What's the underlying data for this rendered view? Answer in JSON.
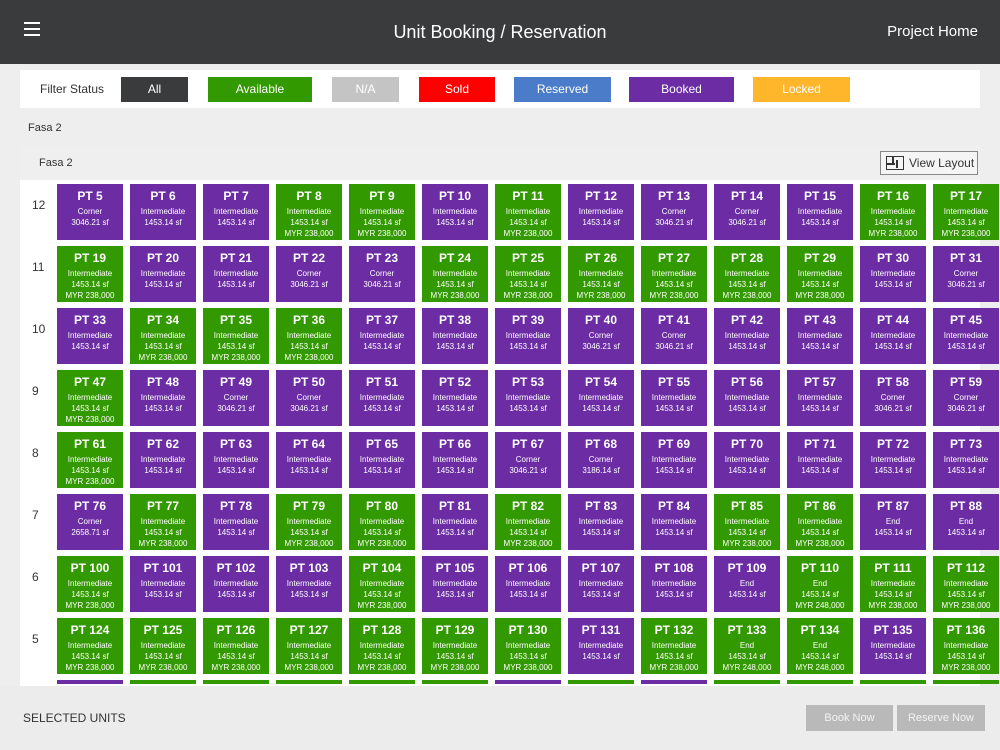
{
  "header": {
    "title": "Unit Booking / Reservation",
    "project_home": "Project Home"
  },
  "filter": {
    "label": "Filter Status",
    "buttons": [
      {
        "label": "All",
        "color": "#3a3b3d"
      },
      {
        "label": "Available",
        "color": "#339900"
      },
      {
        "label": "N/A",
        "color": "#c4c4c4"
      },
      {
        "label": "Sold",
        "color": "#ff0000"
      },
      {
        "label": "Reserved",
        "color": "#4a7cc9"
      },
      {
        "label": "Booked",
        "color": "#6b2ca4"
      },
      {
        "label": "Locked",
        "color": "#ffb62b"
      }
    ]
  },
  "section": {
    "label": "Fasa 2"
  },
  "panel": {
    "title": "Fasa 2",
    "view_layout": "View Layout"
  },
  "status_colors": {
    "available": "#339900",
    "booked": "#6b2ca4"
  },
  "floors": [
    {
      "level": "12",
      "units": [
        {
          "name": "PT 5",
          "type": "Corner",
          "size": "3046.21 sf",
          "price": "",
          "status": "booked"
        },
        {
          "name": "PT 6",
          "type": "Intermediate",
          "size": "1453.14 sf",
          "price": "",
          "status": "booked"
        },
        {
          "name": "PT 7",
          "type": "Intermediate",
          "size": "1453.14 sf",
          "price": "",
          "status": "booked"
        },
        {
          "name": "PT 8",
          "type": "Intermediate",
          "size": "1453.14 sf",
          "price": "MYR 238,000",
          "status": "available"
        },
        {
          "name": "PT 9",
          "type": "Intermediate",
          "size": "1453.14 sf",
          "price": "MYR 238,000",
          "status": "available"
        },
        {
          "name": "PT 10",
          "type": "Intermediate",
          "size": "1453.14 sf",
          "price": "",
          "status": "booked"
        },
        {
          "name": "PT 11",
          "type": "Intermediate",
          "size": "1453.14 sf",
          "price": "MYR 238,000",
          "status": "available"
        },
        {
          "name": "PT 12",
          "type": "Intermediate",
          "size": "1453.14 sf",
          "price": "",
          "status": "booked"
        },
        {
          "name": "PT 13",
          "type": "Corner",
          "size": "3046.21 sf",
          "price": "",
          "status": "booked"
        },
        {
          "name": "PT 14",
          "type": "Corner",
          "size": "3046.21 sf",
          "price": "",
          "status": "booked"
        },
        {
          "name": "PT 15",
          "type": "Intermediate",
          "size": "1453.14 sf",
          "price": "",
          "status": "booked"
        },
        {
          "name": "PT 16",
          "type": "Intermediate",
          "size": "1453.14 sf",
          "price": "MYR 238,000",
          "status": "available"
        },
        {
          "name": "PT 17",
          "type": "Intermediate",
          "size": "1453.14 sf",
          "price": "MYR 238,000",
          "status": "available"
        }
      ]
    },
    {
      "level": "11",
      "units": [
        {
          "name": "PT 19",
          "type": "Intermediate",
          "size": "1453.14 sf",
          "price": "MYR 238,000",
          "status": "available"
        },
        {
          "name": "PT 20",
          "type": "Intermediate",
          "size": "1453.14 sf",
          "price": "",
          "status": "booked"
        },
        {
          "name": "PT 21",
          "type": "Intermediate",
          "size": "1453.14 sf",
          "price": "",
          "status": "booked"
        },
        {
          "name": "PT 22",
          "type": "Corner",
          "size": "3046.21 sf",
          "price": "",
          "status": "booked"
        },
        {
          "name": "PT 23",
          "type": "Corner",
          "size": "3046.21 sf",
          "price": "",
          "status": "booked"
        },
        {
          "name": "PT 24",
          "type": "Intermediate",
          "size": "1453.14 sf",
          "price": "MYR 238,000",
          "status": "available"
        },
        {
          "name": "PT 25",
          "type": "Intermediate",
          "size": "1453.14 sf",
          "price": "MYR 238,000",
          "status": "available"
        },
        {
          "name": "PT 26",
          "type": "Intermediate",
          "size": "1453.14 sf",
          "price": "MYR 238,000",
          "status": "available"
        },
        {
          "name": "PT 27",
          "type": "Intermediate",
          "size": "1453.14 sf",
          "price": "MYR 238,000",
          "status": "available"
        },
        {
          "name": "PT 28",
          "type": "Intermediate",
          "size": "1453.14 sf",
          "price": "MYR 238,000",
          "status": "available"
        },
        {
          "name": "PT 29",
          "type": "Intermediate",
          "size": "1453.14 sf",
          "price": "MYR 238,000",
          "status": "available"
        },
        {
          "name": "PT 30",
          "type": "Intermediate",
          "size": "1453.14 sf",
          "price": "",
          "status": "booked"
        },
        {
          "name": "PT 31",
          "type": "Corner",
          "size": "3046.21 sf",
          "price": "",
          "status": "booked"
        }
      ]
    },
    {
      "level": "10",
      "units": [
        {
          "name": "PT 33",
          "type": "Intermediate",
          "size": "1453.14 sf",
          "price": "",
          "status": "booked"
        },
        {
          "name": "PT 34",
          "type": "Intermediate",
          "size": "1453.14 sf",
          "price": "MYR 238,000",
          "status": "available"
        },
        {
          "name": "PT 35",
          "type": "Intermediate",
          "size": "1453.14 sf",
          "price": "MYR 238,000",
          "status": "available"
        },
        {
          "name": "PT 36",
          "type": "Intermediate",
          "size": "1453.14 sf",
          "price": "MYR 238,000",
          "status": "available"
        },
        {
          "name": "PT 37",
          "type": "Intermediate",
          "size": "1453.14 sf",
          "price": "",
          "status": "booked"
        },
        {
          "name": "PT 38",
          "type": "Intermediate",
          "size": "1453.14 sf",
          "price": "",
          "status": "booked"
        },
        {
          "name": "PT 39",
          "type": "Intermediate",
          "size": "1453.14 sf",
          "price": "",
          "status": "booked"
        },
        {
          "name": "PT 40",
          "type": "Corner",
          "size": "3046.21 sf",
          "price": "",
          "status": "booked"
        },
        {
          "name": "PT 41",
          "type": "Corner",
          "size": "3046.21 sf",
          "price": "",
          "status": "booked"
        },
        {
          "name": "PT 42",
          "type": "Intermediate",
          "size": "1453.14 sf",
          "price": "",
          "status": "booked"
        },
        {
          "name": "PT 43",
          "type": "Intermediate",
          "size": "1453.14 sf",
          "price": "",
          "status": "booked"
        },
        {
          "name": "PT 44",
          "type": "Intermediate",
          "size": "1453.14 sf",
          "price": "",
          "status": "booked"
        },
        {
          "name": "PT 45",
          "type": "Intermediate",
          "size": "1453.14 sf",
          "price": "",
          "status": "booked"
        }
      ]
    },
    {
      "level": "9",
      "units": [
        {
          "name": "PT 47",
          "type": "Intermediate",
          "size": "1453.14 sf",
          "price": "MYR 238,000",
          "status": "available"
        },
        {
          "name": "PT 48",
          "type": "Intermediate",
          "size": "1453.14 sf",
          "price": "",
          "status": "booked"
        },
        {
          "name": "PT 49",
          "type": "Corner",
          "size": "3046.21 sf",
          "price": "",
          "status": "booked"
        },
        {
          "name": "PT 50",
          "type": "Corner",
          "size": "3046.21 sf",
          "price": "",
          "status": "booked"
        },
        {
          "name": "PT 51",
          "type": "Intermediate",
          "size": "1453.14 sf",
          "price": "",
          "status": "booked"
        },
        {
          "name": "PT 52",
          "type": "Intermediate",
          "size": "1453.14 sf",
          "price": "",
          "status": "booked"
        },
        {
          "name": "PT 53",
          "type": "Intermediate",
          "size": "1453.14 sf",
          "price": "",
          "status": "booked"
        },
        {
          "name": "PT 54",
          "type": "Intermediate",
          "size": "1453.14 sf",
          "price": "",
          "status": "booked"
        },
        {
          "name": "PT 55",
          "type": "Intermediate",
          "size": "1453.14 sf",
          "price": "",
          "status": "booked"
        },
        {
          "name": "PT 56",
          "type": "Intermediate",
          "size": "1453.14 sf",
          "price": "",
          "status": "booked"
        },
        {
          "name": "PT 57",
          "type": "Intermediate",
          "size": "1453.14 sf",
          "price": "",
          "status": "booked"
        },
        {
          "name": "PT 58",
          "type": "Corner",
          "size": "3046.21 sf",
          "price": "",
          "status": "booked"
        },
        {
          "name": "PT 59",
          "type": "Corner",
          "size": "3046.21 sf",
          "price": "",
          "status": "booked"
        }
      ]
    },
    {
      "level": "8",
      "units": [
        {
          "name": "PT 61",
          "type": "Intermediate",
          "size": "1453.14 sf",
          "price": "MYR 238,000",
          "status": "available"
        },
        {
          "name": "PT 62",
          "type": "Intermediate",
          "size": "1453.14 sf",
          "price": "",
          "status": "booked"
        },
        {
          "name": "PT 63",
          "type": "Intermediate",
          "size": "1453.14 sf",
          "price": "",
          "status": "booked"
        },
        {
          "name": "PT 64",
          "type": "Intermediate",
          "size": "1453.14 sf",
          "price": "",
          "status": "booked"
        },
        {
          "name": "PT 65",
          "type": "Intermediate",
          "size": "1453.14 sf",
          "price": "",
          "status": "booked"
        },
        {
          "name": "PT 66",
          "type": "Intermediate",
          "size": "1453.14 sf",
          "price": "",
          "status": "booked"
        },
        {
          "name": "PT 67",
          "type": "Corner",
          "size": "3046.21 sf",
          "price": "",
          "status": "booked"
        },
        {
          "name": "PT 68",
          "type": "Corner",
          "size": "3186.14 sf",
          "price": "",
          "status": "booked"
        },
        {
          "name": "PT 69",
          "type": "Intermediate",
          "size": "1453.14 sf",
          "price": "",
          "status": "booked"
        },
        {
          "name": "PT 70",
          "type": "Intermediate",
          "size": "1453.14 sf",
          "price": "",
          "status": "booked"
        },
        {
          "name": "PT 71",
          "type": "Intermediate",
          "size": "1453.14 sf",
          "price": "",
          "status": "booked"
        },
        {
          "name": "PT 72",
          "type": "Intermediate",
          "size": "1453.14 sf",
          "price": "",
          "status": "booked"
        },
        {
          "name": "PT 73",
          "type": "Intermediate",
          "size": "1453.14 sf",
          "price": "",
          "status": "booked"
        }
      ]
    },
    {
      "level": "7",
      "units": [
        {
          "name": "PT 76",
          "type": "Corner",
          "size": "2658.71 sf",
          "price": "",
          "status": "booked"
        },
        {
          "name": "PT 77",
          "type": "Intermediate",
          "size": "1453.14 sf",
          "price": "MYR 238,000",
          "status": "available"
        },
        {
          "name": "PT 78",
          "type": "Intermediate",
          "size": "1453.14 sf",
          "price": "",
          "status": "booked"
        },
        {
          "name": "PT 79",
          "type": "Intermediate",
          "size": "1453.14 sf",
          "price": "MYR 238,000",
          "status": "available"
        },
        {
          "name": "PT 80",
          "type": "Intermediate",
          "size": "1453.14 sf",
          "price": "MYR 238,000",
          "status": "available"
        },
        {
          "name": "PT 81",
          "type": "Intermediate",
          "size": "1453.14 sf",
          "price": "",
          "status": "booked"
        },
        {
          "name": "PT 82",
          "type": "Intermediate",
          "size": "1453.14 sf",
          "price": "MYR 238,000",
          "status": "available"
        },
        {
          "name": "PT 83",
          "type": "Intermediate",
          "size": "1453.14 sf",
          "price": "",
          "status": "booked"
        },
        {
          "name": "PT 84",
          "type": "Intermediate",
          "size": "1453.14 sf",
          "price": "",
          "status": "booked"
        },
        {
          "name": "PT 85",
          "type": "Intermediate",
          "size": "1453.14 sf",
          "price": "MYR 238,000",
          "status": "available"
        },
        {
          "name": "PT 86",
          "type": "Intermediate",
          "size": "1453.14 sf",
          "price": "MYR 238,000",
          "status": "available"
        },
        {
          "name": "PT 87",
          "type": "End",
          "size": "1453.14 sf",
          "price": "",
          "status": "booked"
        },
        {
          "name": "PT 88",
          "type": "End",
          "size": "1453.14 sf",
          "price": "",
          "status": "booked"
        }
      ]
    },
    {
      "level": "6",
      "units": [
        {
          "name": "PT 100",
          "type": "Intermediate",
          "size": "1453.14 sf",
          "price": "MYR 238,000",
          "status": "available"
        },
        {
          "name": "PT 101",
          "type": "Intermediate",
          "size": "1453.14 sf",
          "price": "",
          "status": "booked"
        },
        {
          "name": "PT 102",
          "type": "Intermediate",
          "size": "1453.14 sf",
          "price": "",
          "status": "booked"
        },
        {
          "name": "PT 103",
          "type": "Intermediate",
          "size": "1453.14 sf",
          "price": "",
          "status": "booked"
        },
        {
          "name": "PT 104",
          "type": "Intermediate",
          "size": "1453.14 sf",
          "price": "MYR 238,000",
          "status": "available"
        },
        {
          "name": "PT 105",
          "type": "Intermediate",
          "size": "1453.14 sf",
          "price": "",
          "status": "booked"
        },
        {
          "name": "PT 106",
          "type": "Intermediate",
          "size": "1453.14 sf",
          "price": "",
          "status": "booked"
        },
        {
          "name": "PT 107",
          "type": "Intermediate",
          "size": "1453.14 sf",
          "price": "",
          "status": "booked"
        },
        {
          "name": "PT 108",
          "type": "Intermediate",
          "size": "1453.14 sf",
          "price": "",
          "status": "booked"
        },
        {
          "name": "PT 109",
          "type": "End",
          "size": "1453.14 sf",
          "price": "",
          "status": "booked"
        },
        {
          "name": "PT 110",
          "type": "End",
          "size": "1453.14 sf",
          "price": "MYR 248,000",
          "status": "available"
        },
        {
          "name": "PT 111",
          "type": "Intermediate",
          "size": "1453.14 sf",
          "price": "MYR 238,000",
          "status": "available"
        },
        {
          "name": "PT 112",
          "type": "Intermediate",
          "size": "1453.14 sf",
          "price": "MYR 238,000",
          "status": "available"
        }
      ]
    },
    {
      "level": "5",
      "units": [
        {
          "name": "PT 124",
          "type": "Intermediate",
          "size": "1453.14 sf",
          "price": "MYR 238,000",
          "status": "available"
        },
        {
          "name": "PT 125",
          "type": "Intermediate",
          "size": "1453.14 sf",
          "price": "MYR 238,000",
          "status": "available"
        },
        {
          "name": "PT 126",
          "type": "Intermediate",
          "size": "1453.14 sf",
          "price": "MYR 238,000",
          "status": "available"
        },
        {
          "name": "PT 127",
          "type": "Intermediate",
          "size": "1453.14 sf",
          "price": "MYR 238,000",
          "status": "available"
        },
        {
          "name": "PT 128",
          "type": "Intermediate",
          "size": "1453.14 sf",
          "price": "MYR 238,000",
          "status": "available"
        },
        {
          "name": "PT 129",
          "type": "Intermediate",
          "size": "1453.14 sf",
          "price": "MYR 238,000",
          "status": "available"
        },
        {
          "name": "PT 130",
          "type": "Intermediate",
          "size": "1453.14 sf",
          "price": "MYR 238,000",
          "status": "available"
        },
        {
          "name": "PT 131",
          "type": "Intermediate",
          "size": "1453.14 sf",
          "price": "",
          "status": "booked"
        },
        {
          "name": "PT 132",
          "type": "Intermediate",
          "size": "1453.14 sf",
          "price": "MYR 238,000",
          "status": "available"
        },
        {
          "name": "PT 133",
          "type": "End",
          "size": "1453.14 sf",
          "price": "MYR 248,000",
          "status": "available"
        },
        {
          "name": "PT 134",
          "type": "End",
          "size": "1453.14 sf",
          "price": "MYR 248,000",
          "status": "available"
        },
        {
          "name": "PT 135",
          "type": "Intermediate",
          "size": "1453.14 sf",
          "price": "",
          "status": "booked"
        },
        {
          "name": "PT 136",
          "type": "Intermediate",
          "size": "1453.14 sf",
          "price": "MYR 238,000",
          "status": "available"
        }
      ]
    }
  ],
  "partial_row_statuses": [
    "booked",
    "available",
    "available",
    "available",
    "available",
    "available",
    "booked",
    "available",
    "booked",
    "available",
    "available",
    "available",
    "available"
  ],
  "footer": {
    "selected_units": "SELECTED UNITS",
    "book_now": "Book Now",
    "reserve_now": "Reserve Now"
  }
}
